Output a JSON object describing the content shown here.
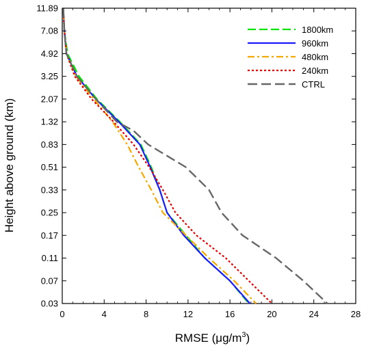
{
  "chart_data": {
    "type": "line",
    "xlabel": "RMSE (μg/m",
    "xlabel_sup": "3",
    "xlabel_close": ")",
    "ylabel": "Height above ground (km)",
    "xlim": [
      0,
      28
    ],
    "x_ticks": [
      0,
      4,
      8,
      12,
      16,
      20,
      24,
      28
    ],
    "x_tick_labels": [
      "0",
      "4",
      "8",
      "12",
      "16",
      "20",
      "24",
      "28"
    ],
    "y_tick_labels": [
      "11.89",
      "7.08",
      "4.92",
      "3.25",
      "2.07",
      "1.32",
      "0.83",
      "0.51",
      "0.33",
      "0.25",
      "0.17",
      "0.11",
      "0.07",
      "0.03"
    ],
    "legend_position": "top-right",
    "grid": false,
    "series": [
      {
        "name": "1800km",
        "color": "#00e600",
        "dash": "12,5",
        "width": 2.2,
        "points": [
          [
            0.1,
            11.89
          ],
          [
            0.2,
            7.08
          ],
          [
            0.5,
            4.92
          ],
          [
            1.6,
            3.25
          ],
          [
            3.3,
            2.07
          ],
          [
            5.5,
            1.32
          ],
          [
            7.5,
            0.83
          ],
          [
            8.5,
            0.51
          ],
          [
            9.3,
            0.33
          ],
          [
            10,
            0.25
          ],
          [
            11.8,
            0.17
          ],
          [
            13.6,
            0.11
          ],
          [
            16,
            0.07
          ],
          [
            17.8,
            0.03
          ]
        ]
      },
      {
        "name": "960km",
        "color": "#1a1aff",
        "dash": "",
        "width": 2.2,
        "points": [
          [
            0.1,
            11.89
          ],
          [
            0.2,
            7.08
          ],
          [
            0.4,
            4.92
          ],
          [
            1.4,
            3.25
          ],
          [
            3.2,
            2.07
          ],
          [
            5.4,
            1.32
          ],
          [
            7.4,
            0.83
          ],
          [
            8.4,
            0.51
          ],
          [
            9.3,
            0.33
          ],
          [
            10,
            0.25
          ],
          [
            11.6,
            0.17
          ],
          [
            13.6,
            0.11
          ],
          [
            16,
            0.07
          ],
          [
            17.9,
            0.03
          ]
        ]
      },
      {
        "name": "480km",
        "color": "#f5a800",
        "dash": "10,4,3,4",
        "width": 2.2,
        "points": [
          [
            0.1,
            11.89
          ],
          [
            0.2,
            7.08
          ],
          [
            0.4,
            4.92
          ],
          [
            1.3,
            3.25
          ],
          [
            3,
            2.07
          ],
          [
            4.8,
            1.32
          ],
          [
            6.2,
            0.83
          ],
          [
            7.3,
            0.51
          ],
          [
            8.5,
            0.33
          ],
          [
            9.6,
            0.25
          ],
          [
            11.8,
            0.17
          ],
          [
            14,
            0.11
          ],
          [
            16.4,
            0.07
          ],
          [
            18.5,
            0.03
          ]
        ]
      },
      {
        "name": "240km",
        "color": "#e60000",
        "dash": "3,3",
        "width": 2.2,
        "points": [
          [
            0.1,
            11.89
          ],
          [
            0.2,
            7.08
          ],
          [
            0.4,
            4.92
          ],
          [
            1.2,
            3.25
          ],
          [
            2.8,
            2.07
          ],
          [
            4.9,
            1.32
          ],
          [
            6.8,
            0.83
          ],
          [
            8.3,
            0.51
          ],
          [
            9.6,
            0.33
          ],
          [
            10.8,
            0.25
          ],
          [
            12.8,
            0.17
          ],
          [
            15.6,
            0.11
          ],
          [
            17.8,
            0.07
          ],
          [
            20,
            0.03
          ]
        ]
      },
      {
        "name": "CTRL",
        "color": "#666666",
        "dash": "14,6",
        "width": 2.4,
        "points": [
          [
            0.1,
            11.89
          ],
          [
            0.2,
            7.08
          ],
          [
            0.4,
            4.92
          ],
          [
            1.4,
            3.25
          ],
          [
            3.2,
            2.07
          ],
          [
            5.2,
            1.32
          ],
          [
            6.8,
            1.1
          ],
          [
            8.2,
            0.83
          ],
          [
            11.8,
            0.51
          ],
          [
            14,
            0.33
          ],
          [
            15.2,
            0.25
          ],
          [
            17.2,
            0.17
          ],
          [
            20.4,
            0.11
          ],
          [
            23,
            0.07
          ],
          [
            25.3,
            0.03
          ]
        ]
      }
    ]
  }
}
